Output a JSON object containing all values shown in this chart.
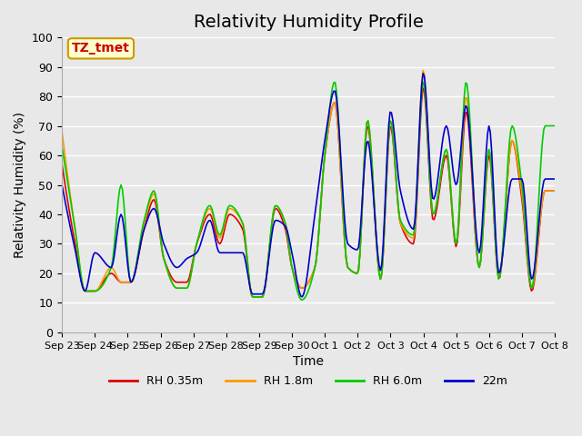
{
  "title": "Relativity Humidity Profile",
  "xlabel": "Time",
  "ylabel": "Relativity Humidity (%)",
  "ylim": [
    0,
    100
  ],
  "annotation_text": "TZ_tmet",
  "annotation_color": "#cc0000",
  "annotation_bg": "#ffffcc",
  "annotation_border": "#cc9900",
  "legend_labels": [
    "RH 0.35m",
    "RH 1.8m",
    "RH 6.0m",
    "22m"
  ],
  "line_colors": [
    "#dd0000",
    "#ff9900",
    "#00cc00",
    "#0000cc"
  ],
  "xtick_labels": [
    "Sep 23",
    "Sep 24",
    "Sep 25",
    "Sep 26",
    "Sep 27",
    "Sep 28",
    "Sep 29",
    "Sep 30",
    "Oct 1",
    "Oct 2",
    "Oct 3",
    "Oct 4",
    "Oct 5",
    "Oct 6",
    "Oct 7",
    "Oct 8"
  ],
  "ytick_labels": [
    "0",
    "10",
    "20",
    "30",
    "40",
    "50",
    "60",
    "70",
    "80",
    "90",
    "100"
  ],
  "background_color": "#e8e8e8",
  "plot_bg_color": "#e8e8e8",
  "grid_color": "#ffffff",
  "title_fontsize": 14
}
